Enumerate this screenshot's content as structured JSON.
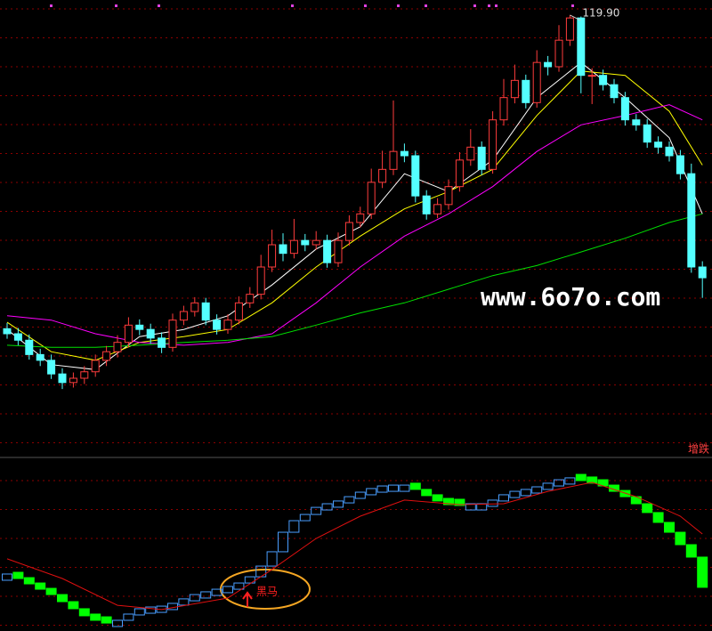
{
  "chart_data": [
    {
      "type": "candlestick",
      "open": [
        76.2,
        75.5,
        74.6,
        72.6,
        71.8,
        69.9,
        68.7,
        69.3,
        70.2,
        71.8,
        73,
        74.3,
        76.7,
        76.1,
        74.9,
        73.6,
        77.4,
        78.6,
        79.8,
        77.4,
        76.1,
        77.4,
        79.8,
        81,
        84.8,
        87.9,
        86.7,
        88.5,
        87.9,
        88.5,
        85.4,
        88.5,
        91,
        92.2,
        96.6,
        98.4,
        100.9,
        100.3,
        94.7,
        92.2,
        93.5,
        96,
        99.7,
        101.5,
        98.4,
        105.3,
        108.4,
        110.8,
        107.7,
        113.3,
        112.7,
        116.4,
        119.5,
        111.5,
        111.5,
        110.2,
        108.4,
        105.3,
        104.6,
        102.2,
        101.5,
        100.3,
        97.8,
        84.8
      ],
      "high": [
        77,
        76.3,
        75.4,
        73.4,
        72.6,
        70.7,
        70.1,
        71,
        72.6,
        73.8,
        75.3,
        77.8,
        77.5,
        76.9,
        75.7,
        78.3,
        79.4,
        80.6,
        80.5,
        78.2,
        78.2,
        80.7,
        82,
        86.5,
        90,
        89.5,
        91.5,
        89.4,
        89.8,
        89.3,
        89.6,
        92,
        93.2,
        98.5,
        101,
        108,
        102,
        101,
        95.5,
        94.4,
        97,
        100.8,
        104,
        102.3,
        106.5,
        111,
        113,
        111.6,
        115,
        114.2,
        118.5,
        119.9,
        119.7,
        112.5,
        112.3,
        111,
        109.2,
        106.1,
        105.4,
        103,
        102.3,
        101.1,
        99.2,
        85.6
      ],
      "low": [
        74.8,
        73.9,
        71.9,
        71,
        69.2,
        67.8,
        68,
        68.5,
        69.5,
        71,
        72.2,
        73.6,
        75.3,
        74.1,
        72.8,
        73,
        76.7,
        77.9,
        76.7,
        75.4,
        75.5,
        76.8,
        79.1,
        80.3,
        84.1,
        85.6,
        86,
        87,
        87.2,
        84.7,
        84.8,
        87.8,
        90.3,
        91.5,
        95.8,
        97.6,
        99.4,
        93.8,
        91.4,
        91.6,
        92.8,
        95.3,
        98.9,
        97.6,
        97.8,
        104.5,
        107.6,
        106.9,
        107,
        111.5,
        112,
        115.6,
        109,
        107.5,
        109.4,
        107.6,
        104.5,
        103.8,
        101.4,
        100.6,
        99.5,
        97,
        84,
        80.5
      ],
      "close": [
        75.5,
        74.6,
        72.6,
        71.8,
        69.9,
        68.7,
        69.3,
        70.2,
        71.8,
        73,
        74.3,
        76.7,
        76.1,
        74.9,
        73.6,
        77.4,
        78.6,
        79.8,
        77.4,
        76.1,
        77.4,
        79.8,
        81,
        84.8,
        87.9,
        86.7,
        88.5,
        87.9,
        88.5,
        85.4,
        88.5,
        91,
        92.2,
        96.6,
        98.4,
        100.9,
        100.3,
        94.7,
        92.2,
        93.5,
        96,
        99.7,
        101.5,
        98.4,
        105.3,
        108.4,
        110.8,
        107.7,
        113.3,
        112.7,
        116.4,
        119.5,
        111.5,
        111.5,
        110.2,
        108.4,
        105.3,
        104.6,
        102.2,
        101.5,
        100.3,
        97.8,
        84.8,
        83.3
      ],
      "up_color": "#ff3c3c",
      "down_color": "#54ffff",
      "series": [
        {
          "color": "#ffffff",
          "x": [
            0,
            4,
            8,
            12,
            16,
            20,
            24,
            28,
            32,
            36,
            40,
            44,
            48,
            52,
            56,
            60,
            63
          ],
          "values": [
            76.1,
            71.2,
            70.5,
            75.1,
            76.1,
            78,
            82.3,
            87.3,
            90.4,
            97.8,
            95.3,
            99.7,
            108.4,
            113.3,
            108.4,
            102.8,
            92.2
          ]
        },
        {
          "color": "#ffff00",
          "x": [
            0,
            4,
            8,
            12,
            16,
            20,
            24,
            28,
            32,
            36,
            40,
            44,
            48,
            52,
            56,
            60,
            63
          ],
          "values": [
            77.1,
            73,
            71.8,
            74.3,
            75.1,
            76.1,
            79.8,
            84.8,
            89.1,
            92.9,
            95.3,
            98.4,
            105.9,
            112.1,
            111.5,
            106.5,
            99
          ]
        },
        {
          "color": "#ff00ff",
          "x": [
            0,
            4,
            8,
            12,
            16,
            20,
            24,
            28,
            32,
            36,
            40,
            44,
            48,
            52,
            56,
            60,
            63
          ],
          "values": [
            78,
            77.4,
            75.5,
            74.3,
            73.9,
            74.3,
            75.5,
            79.8,
            84.8,
            89.1,
            92.2,
            96,
            100.9,
            104.6,
            105.9,
            107.4,
            105.3
          ]
        },
        {
          "color": "#00e000",
          "x": [
            0,
            4,
            8,
            12,
            16,
            20,
            24,
            28,
            32,
            36,
            40,
            44,
            48,
            52,
            56,
            60,
            63
          ],
          "values": [
            73.9,
            73.6,
            73.6,
            73.9,
            74.3,
            74.6,
            75.1,
            76.7,
            78.4,
            79.8,
            81.7,
            83.6,
            85,
            86.9,
            88.8,
            91,
            92.2
          ]
        }
      ],
      "ylim": [
        60,
        122
      ],
      "annotation": {
        "value": 119.9,
        "label": "119.90"
      },
      "watermark": "www.6o7o.com"
    },
    {
      "type": "step-box",
      "title": "增跌",
      "values": [
        33,
        30.4,
        27.3,
        24.2,
        21.1,
        17,
        12.9,
        8.8,
        6.2,
        4.6,
        6.2,
        9.8,
        12.9,
        13.9,
        14.4,
        16,
        18.6,
        21.1,
        22.7,
        24.2,
        25.8,
        27.8,
        31.4,
        37.6,
        45.9,
        57.2,
        63.9,
        67.5,
        71.6,
        73.7,
        75.3,
        77.8,
        80.4,
        82.5,
        84,
        84.5,
        84.5,
        82,
        78.4,
        75.3,
        73.2,
        72.7,
        73.7,
        73.7,
        75.8,
        78.9,
        80.9,
        82,
        83.5,
        85.6,
        87.6,
        88.7,
        87.1,
        85.6,
        84,
        80.9,
        77.8,
        73.7,
        68.6,
        62.9,
        57.2,
        50,
        42.8,
        25.3
      ],
      "up_color": "#4a9eff",
      "down_color": "#00ff00",
      "signal": {
        "color": "#e01010",
        "x": [
          0,
          5,
          10,
          14,
          20,
          24,
          28,
          32,
          36,
          41,
          45,
          49,
          53,
          57,
          61,
          63
        ],
        "values": [
          41.8,
          30.4,
          14.9,
          12.4,
          19.1,
          35.6,
          53.6,
          66.5,
          75.8,
          73.2,
          73.7,
          80.9,
          86.1,
          77.8,
          66.5,
          56.2
        ]
      },
      "ylim": [
        0,
        100
      ],
      "annotation": "黑马"
    }
  ]
}
